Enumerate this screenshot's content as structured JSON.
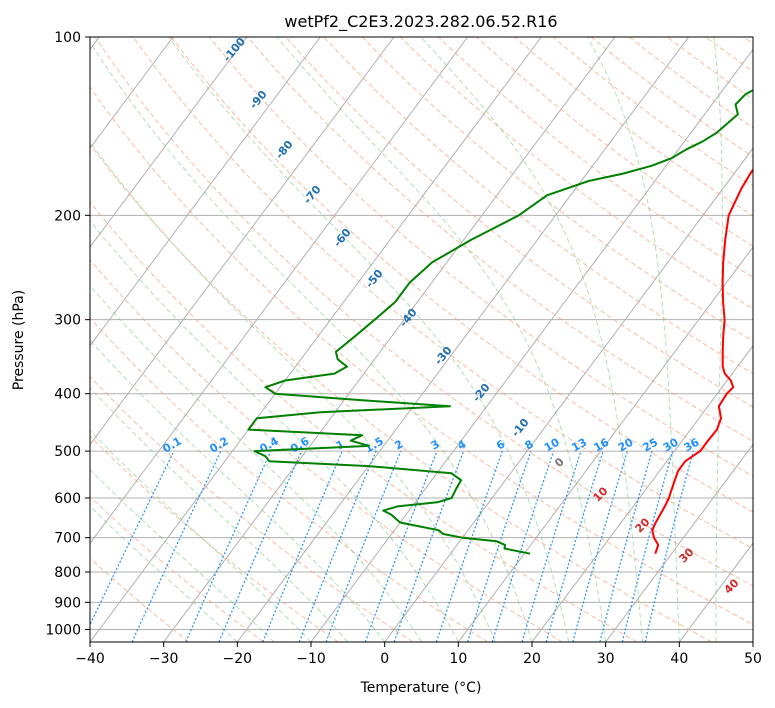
{
  "chart_data": {
    "type": "line",
    "title": "wetPf2_C2E3.2023.282.06.52.R16",
    "xlabel": "Temperature (°C)",
    "ylabel": "Pressure (hPa)",
    "xlim": [
      -40,
      50
    ],
    "ylim": [
      1050,
      100
    ],
    "y_scale": "log",
    "grid": true,
    "x_ticks": [
      "−40",
      "−30",
      "−20",
      "−10",
      "0",
      "10",
      "20",
      "30",
      "40",
      "50"
    ],
    "y_ticks": [
      "100",
      "200",
      "300",
      "400",
      "500",
      "600",
      "700",
      "800",
      "900",
      "1000"
    ],
    "series": [
      {
        "color": "#ff0000",
        "pressure": [
          745,
          720,
          700,
          680,
          660,
          640,
          620,
          600,
          580,
          560,
          540,
          520,
          500,
          480,
          460,
          440,
          420,
          400,
          390,
          380,
          370,
          360,
          340,
          320,
          300,
          280,
          260,
          240,
          220,
          200,
          180,
          170,
          160,
          150,
          140,
          130,
          120,
          110,
          100
        ],
        "temperature": [
          27.8,
          27.3,
          26,
          25,
          24.7,
          24.5,
          24.3,
          24,
          23.5,
          23,
          22.5,
          22.5,
          23.5,
          23.5,
          23.6,
          23,
          21.5,
          21.3,
          21.5,
          20.5,
          19,
          18,
          16.5,
          15,
          13.5,
          11.5,
          9.5,
          7.5,
          5.5,
          3.5,
          2.5,
          2.2,
          2.1,
          1.8,
          1.6,
          1.8,
          1.7,
          2.3,
          3.5
        ]
      },
      {
        "color": "#008000",
        "pressure": [
          745,
          730,
          720,
          710,
          700,
          690,
          680,
          670,
          660,
          650,
          640,
          630,
          620,
          610,
          600,
          580,
          560,
          545,
          530,
          520,
          510,
          500,
          490,
          480,
          470,
          460,
          450,
          440,
          430,
          420,
          410,
          400,
          390,
          380,
          370,
          360,
          350,
          340,
          320,
          300,
          280,
          260,
          240,
          220,
          200,
          185,
          175,
          170,
          165,
          160,
          155,
          150,
          145,
          140,
          135,
          130,
          125,
          120,
          115,
          110,
          105,
          100
        ],
        "dewpoint": [
          10.8,
          6.8,
          6.5,
          5,
          0,
          -3,
          -4,
          -7,
          -10,
          -11,
          -12,
          -13.5,
          -12,
          -7,
          -5.5,
          -5.8,
          -6,
          -8,
          -20,
          -34,
          -35,
          -37,
          -22,
          -25,
          -24,
          -40,
          -40,
          -40,
          -32,
          -15,
          -28,
          -40,
          -42,
          -40,
          -34,
          -33,
          -35,
          -36,
          -35,
          -34,
          -33,
          -33,
          -32,
          -29,
          -25,
          -23.2,
          -19,
          -15,
          -12,
          -10,
          -9,
          -7.5,
          -6.5,
          -6,
          -5.5,
          -6.8,
          -6.5,
          -5,
          -3,
          -2.5,
          -1.5,
          0
        ]
      }
    ],
    "dry_adiabat_labels": [
      "-100",
      "-90",
      "-80",
      "-70",
      "-60",
      "-50",
      "-40",
      "-30",
      "-20",
      "-10"
    ],
    "moist_adiabat_labels": [
      "0",
      "10",
      "20",
      "30",
      "40"
    ],
    "mixing_ratio_labels": [
      "0.1",
      "0.2",
      "0.4",
      "0.6",
      "1",
      "1.5",
      "2",
      "3",
      "4",
      "6",
      "8",
      "10",
      "13",
      "16",
      "20",
      "25",
      "30",
      "36"
    ],
    "colors": {
      "temperature": "#ff0000",
      "dewpoint": "#008000",
      "dry_adiabat_label": "#1f6fb4",
      "moist_adiabat_label": "#d62728",
      "mixing_ratio_label": "#1e90ff"
    }
  }
}
